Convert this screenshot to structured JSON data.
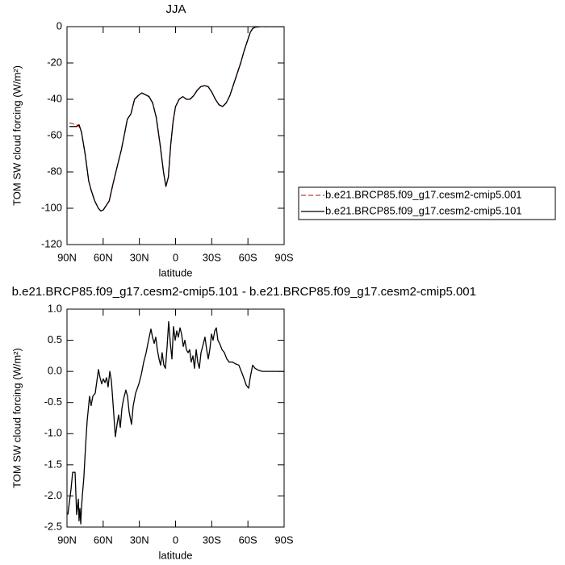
{
  "chart_data": [
    {
      "type": "line",
      "title": "JJA",
      "xlabel": "latitude",
      "ylabel": "TOM SW cloud forcing (W/m²)",
      "xlim": [
        90,
        -90
      ],
      "xticks": [
        {
          "value": 90,
          "label": "90N"
        },
        {
          "value": 60,
          "label": "60N"
        },
        {
          "value": 30,
          "label": "30N"
        },
        0,
        {
          "value": -30,
          "label": "30S"
        },
        {
          "value": -60,
          "label": "60S"
        },
        {
          "value": -90,
          "label": "90S"
        }
      ],
      "ylim": [
        -120,
        0
      ],
      "yticks": [
        0,
        -20,
        -40,
        -60,
        -80,
        -100,
        -120
      ],
      "legend": "right",
      "x": [
        88,
        85,
        82,
        80,
        78,
        75,
        72,
        70,
        67,
        64,
        62,
        60,
        58,
        55,
        52,
        48,
        45,
        42,
        40,
        37,
        34,
        31,
        28,
        25,
        22,
        19,
        16,
        13,
        10,
        8,
        6,
        4,
        2,
        0,
        -3,
        -6,
        -9,
        -12,
        -15,
        -18,
        -21,
        -24,
        -27,
        -30,
        -33,
        -36,
        -39,
        -42,
        -45,
        -48,
        -51,
        -54,
        -57,
        -60,
        -62,
        -64,
        -66,
        -70,
        -80,
        -90
      ],
      "series": [
        {
          "name": "b.e21.BRCP85.f09_g17.cesm2-cmip5.001",
          "color": "#e0302a",
          "dash": "dashed",
          "values": [
            -53,
            -53.5,
            -54,
            -55,
            -58,
            -70,
            -85,
            -90,
            -96,
            -100,
            -101.5,
            -101,
            -99,
            -96,
            -87,
            -76,
            -68,
            -58,
            -51,
            -48,
            -40,
            -38,
            -36.5,
            -37.5,
            -38.5,
            -42,
            -50,
            -64,
            -80,
            -88,
            -83,
            -65,
            -52,
            -44,
            -40,
            -38.5,
            -40,
            -40,
            -38,
            -35,
            -33,
            -32.5,
            -33,
            -36,
            -40,
            -43,
            -44,
            -42,
            -38,
            -32,
            -26,
            -20,
            -13,
            -7,
            -3,
            -1,
            -0.3,
            0,
            0,
            0
          ]
        },
        {
          "name": "b.e21.BRCP85.f09_g17.cesm2-cmip5.101",
          "color": "#000000",
          "dash": "solid",
          "values": [
            -55,
            -55,
            -55,
            -54,
            -58,
            -70,
            -85,
            -90,
            -96,
            -100,
            -101.5,
            -101,
            -99,
            -96,
            -87,
            -76,
            -68,
            -58,
            -51,
            -48,
            -40,
            -38,
            -36.5,
            -37.5,
            -38.5,
            -42,
            -50,
            -64,
            -80,
            -88,
            -83,
            -65,
            -52,
            -44,
            -40,
            -38.5,
            -40,
            -40,
            -38,
            -35,
            -33,
            -32.5,
            -33,
            -36,
            -40,
            -43,
            -44,
            -42,
            -38,
            -32,
            -26,
            -20,
            -13,
            -7,
            -3,
            -1,
            -0.3,
            0,
            0,
            0
          ]
        }
      ]
    },
    {
      "type": "line",
      "title": "b.e21.BRCP85.f09_g17.cesm2-cmip5.101 - b.e21.BRCP85.f09_g17.cesm2-cmip5.001",
      "xlabel": "latitude",
      "ylabel": "TOM SW cloud forcing (W/m²)",
      "xlim": [
        90,
        -90
      ],
      "xticks": [
        {
          "value": 90,
          "label": "90N"
        },
        {
          "value": 60,
          "label": "60N"
        },
        {
          "value": 30,
          "label": "30N"
        },
        0,
        {
          "value": -30,
          "label": "30S"
        },
        {
          "value": -60,
          "label": "60S"
        },
        {
          "value": -90,
          "label": "90S"
        }
      ],
      "ylim": [
        -2.5,
        1
      ],
      "yticks": [
        {
          "value": 1,
          "label": "1.0"
        },
        0.5,
        {
          "value": 0,
          "label": "0.0"
        },
        -0.5,
        {
          "value": -1,
          "label": "-1.0"
        },
        -1.5,
        {
          "value": -2,
          "label": "-2.0"
        },
        -2.5
      ],
      "x": [
        89.3,
        88,
        86.7,
        85.3,
        83.3,
        82,
        80.6,
        80,
        79.3,
        78.6,
        78,
        77.3,
        76,
        74.6,
        73.3,
        71.3,
        70,
        68.6,
        66.6,
        63.9,
        62.6,
        61.2,
        59.9,
        58.5,
        57.2,
        55.9,
        54.5,
        53.2,
        51.9,
        49.9,
        48.5,
        47.2,
        45.8,
        44.5,
        43.2,
        41.2,
        39.8,
        38.5,
        36.5,
        35.1,
        33.1,
        30.4,
        28.4,
        26.4,
        24.4,
        22.4,
        20.4,
        19.1,
        17.7,
        16.4,
        15.1,
        13.7,
        12.4,
        11.1,
        9.7,
        8.4,
        7,
        5.7,
        4.3,
        3,
        1.7,
        0.3,
        -1,
        -2.3,
        -3.7,
        -5,
        -6.4,
        -7.7,
        -9,
        -10.4,
        -11.7,
        -13,
        -14.4,
        -15.7,
        -17.1,
        -18.4,
        -19.7,
        -21.1,
        -23.1,
        -24.4,
        -25.8,
        -27.1,
        -28.4,
        -29.8,
        -31.1,
        -32.5,
        -33.8,
        -35.1,
        -36.5,
        -38.5,
        -40.5,
        -42.5,
        -44.5,
        -47.2,
        -49.9,
        -52.5,
        -54.5,
        -56.5,
        -58.6,
        -60.6,
        -61.9,
        -63.9,
        -65.9,
        -68.6,
        -71.9,
        -90
      ],
      "series": [
        {
          "color": "#000000",
          "dash": "solid",
          "values": [
            -2.3,
            -2.1,
            -1.9,
            -1.62,
            -1.62,
            -2.3,
            -2.05,
            -2.4,
            -2.2,
            -2.45,
            -2.2,
            -2.0,
            -1.7,
            -1.2,
            -0.8,
            -0.4,
            -0.55,
            -0.4,
            -0.35,
            0.03,
            -0.1,
            -0.2,
            -0.12,
            -0.18,
            -0.1,
            -0.25,
            0.0,
            -0.15,
            -0.5,
            -1.05,
            -0.85,
            -0.7,
            -0.9,
            -0.6,
            -0.45,
            -0.3,
            -0.4,
            -0.65,
            -0.85,
            -0.55,
            -0.35,
            -0.2,
            -0.05,
            0.15,
            0.3,
            0.5,
            0.68,
            0.55,
            0.45,
            0.55,
            0.35,
            0.2,
            0.1,
            0.3,
            0.1,
            0.05,
            0.4,
            0.8,
            0.45,
            0.2,
            0.72,
            0.5,
            0.65,
            0.55,
            0.7,
            0.6,
            0.4,
            0.5,
            0.35,
            0.3,
            0.35,
            0.15,
            0.25,
            0.05,
            0.35,
            0.15,
            0.05,
            0.3,
            0.45,
            0.55,
            0.35,
            0.2,
            0.35,
            0.6,
            0.5,
            0.65,
            0.7,
            0.5,
            0.45,
            0.35,
            0.3,
            0.2,
            0.15,
            0.15,
            0.12,
            0.1,
            0.0,
            -0.1,
            -0.22,
            -0.27,
            -0.1,
            0.1,
            0.05,
            0.02,
            0,
            0
          ]
        }
      ]
    }
  ]
}
